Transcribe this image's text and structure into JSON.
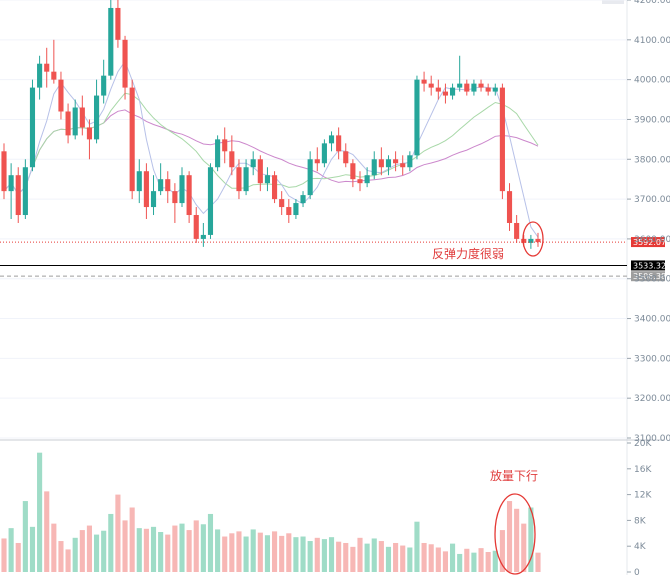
{
  "chart_data": {
    "type": "candlestick",
    "price_axis": {
      "ticks": [
        "4200.00",
        "4100.00",
        "4000.00",
        "3900.00",
        "3800.00",
        "3700.00",
        "3600.00",
        "3500.00",
        "3400.00",
        "3300.00",
        "3200.00",
        "3100.00"
      ],
      "range": [
        3100,
        4210
      ]
    },
    "volume_axis": {
      "ticks": [
        "20K",
        "16K",
        "12K",
        "8K",
        "4K",
        "0"
      ],
      "range": [
        0,
        20000
      ]
    },
    "price_levels": [
      {
        "label": "3592.07",
        "value": 3592.07,
        "color": "#e53935",
        "style": "dotted"
      },
      {
        "label": "3533.32",
        "value": 3533.32,
        "color": "#000000",
        "style": "solid"
      },
      {
        "label": "3506.38",
        "value": 3506.38,
        "color": "#9e9e9e",
        "style": "dashed"
      }
    ],
    "candles_ohlcv": [
      [
        3820,
        3840,
        3700,
        3720,
        5200
      ],
      [
        3720,
        3790,
        3650,
        3760,
        6800
      ],
      [
        3760,
        3780,
        3640,
        3660,
        4500
      ],
      [
        3660,
        3800,
        3650,
        3780,
        11000
      ],
      [
        3780,
        4000,
        3770,
        3980,
        7000
      ],
      [
        3980,
        4060,
        3950,
        4040,
        18500
      ],
      [
        4040,
        4080,
        3980,
        4020,
        12500
      ],
      [
        4020,
        4100,
        3990,
        4000,
        7500
      ],
      [
        4000,
        4020,
        3900,
        3920,
        4800
      ],
      [
        3920,
        3940,
        3840,
        3860,
        3500
      ],
      [
        3860,
        3950,
        3850,
        3930,
        5300
      ],
      [
        3930,
        3960,
        3860,
        3880,
        6500
      ],
      [
        3880,
        3900,
        3800,
        3850,
        7200
      ],
      [
        3850,
        4000,
        3840,
        3960,
        5800
      ],
      [
        3960,
        4050,
        3940,
        4010,
        6400
      ],
      [
        4010,
        4200,
        4000,
        4180,
        9000
      ],
      [
        4180,
        4210,
        4080,
        4100,
        12000
      ],
      [
        4100,
        4110,
        3950,
        3980,
        8000
      ],
      [
        3980,
        4000,
        3700,
        3720,
        10000
      ],
      [
        3720,
        3800,
        3690,
        3770,
        6800
      ],
      [
        3770,
        3790,
        3650,
        3680,
        6700
      ],
      [
        3680,
        3760,
        3660,
        3720,
        7000
      ],
      [
        3720,
        3790,
        3710,
        3750,
        6200
      ],
      [
        3750,
        3770,
        3690,
        3720,
        5800
      ],
      [
        3720,
        3740,
        3640,
        3690,
        7200
      ],
      [
        3690,
        3780,
        3680,
        3760,
        7500
      ],
      [
        3760,
        3770,
        3640,
        3660,
        6500
      ],
      [
        3660,
        3680,
        3590,
        3600,
        8000
      ],
      [
        3600,
        3640,
        3580,
        3610,
        7400
      ],
      [
        3610,
        3790,
        3600,
        3780,
        9000
      ],
      [
        3780,
        3860,
        3770,
        3850,
        6600
      ],
      [
        3850,
        3880,
        3790,
        3820,
        5500
      ],
      [
        3820,
        3860,
        3760,
        3780,
        6000
      ],
      [
        3780,
        3800,
        3700,
        3720,
        6300
      ],
      [
        3720,
        3800,
        3710,
        3780,
        5500
      ],
      [
        3780,
        3820,
        3760,
        3800,
        6600
      ],
      [
        3800,
        3810,
        3720,
        3740,
        6100
      ],
      [
        3740,
        3780,
        3720,
        3760,
        5700
      ],
      [
        3760,
        3770,
        3690,
        3700,
        6300
      ],
      [
        3700,
        3720,
        3660,
        3680,
        5600
      ],
      [
        3680,
        3700,
        3640,
        3660,
        6000
      ],
      [
        3660,
        3700,
        3650,
        3690,
        5400
      ],
      [
        3690,
        3720,
        3680,
        3710,
        5500
      ],
      [
        3710,
        3820,
        3700,
        3800,
        4800
      ],
      [
        3800,
        3830,
        3770,
        3790,
        5300
      ],
      [
        3790,
        3850,
        3780,
        3840,
        5100
      ],
      [
        3840,
        3870,
        3820,
        3860,
        5400
      ],
      [
        3860,
        3880,
        3800,
        3820,
        4700
      ],
      [
        3820,
        3840,
        3780,
        3790,
        4500
      ],
      [
        3790,
        3800,
        3730,
        3750,
        3900
      ],
      [
        3750,
        3770,
        3720,
        3740,
        5300
      ],
      [
        3740,
        3780,
        3730,
        3760,
        4400
      ],
      [
        3760,
        3820,
        3750,
        3800,
        5200
      ],
      [
        3800,
        3830,
        3760,
        3780,
        4800
      ],
      [
        3780,
        3810,
        3760,
        3800,
        3900
      ],
      [
        3800,
        3820,
        3770,
        3790,
        4500
      ],
      [
        3790,
        3810,
        3760,
        3780,
        4100
      ],
      [
        3780,
        3820,
        3770,
        3810,
        3800
      ],
      [
        3810,
        4010,
        3800,
        4000,
        7800
      ],
      [
        4000,
        4020,
        3970,
        3990,
        4500
      ],
      [
        3990,
        4010,
        3960,
        3980,
        4300
      ],
      [
        3980,
        4000,
        3950,
        3970,
        3800
      ],
      [
        3970,
        3990,
        3940,
        3960,
        3200
      ],
      [
        3960,
        3990,
        3950,
        3980,
        4400
      ],
      [
        3980,
        4060,
        3970,
        3990,
        2800
      ],
      [
        3990,
        4000,
        3960,
        3970,
        3600
      ],
      [
        3970,
        4000,
        3960,
        3990,
        3000
      ],
      [
        3990,
        4000,
        3970,
        3980,
        3700
      ],
      [
        3980,
        3990,
        3960,
        3970,
        3100
      ],
      [
        3970,
        3990,
        3960,
        3980,
        3300
      ],
      [
        3980,
        3990,
        3700,
        3720,
        6500
      ],
      [
        3720,
        3740,
        3620,
        3640,
        11000
      ],
      [
        3640,
        3660,
        3590,
        3600,
        9800
      ],
      [
        3600,
        3610,
        3580,
        3590,
        7500
      ],
      [
        3590,
        3610,
        3575,
        3600,
        10000
      ],
      [
        3600,
        3615,
        3580,
        3592,
        3000
      ]
    ]
  },
  "annotations": {
    "weak_rebound": "反弹力度很弱",
    "volume_decline": "放量下行"
  },
  "colors": {
    "up": "#26a69a",
    "down": "#ef5350",
    "up_volume": "#9fdcc7",
    "down_volume": "#f7b7b5",
    "ma_fast": "#b7c1e8",
    "ma_mid": "#a8d8a8",
    "ma_slow": "#cc88cc"
  }
}
